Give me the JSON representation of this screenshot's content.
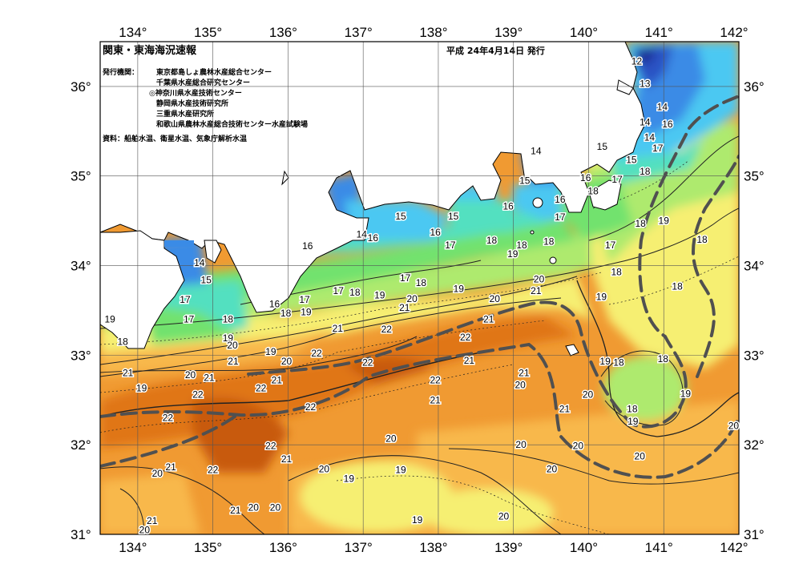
{
  "header": {
    "title": "関東・東海海況速報",
    "date": "平成 24年4月14日 発行",
    "issuer_label": "発行機関：",
    "issuers": [
      "東京都島しょ農林水産総合センター",
      "千葉県水産総合研究センター",
      "◎神奈川県水産技術センター",
      "静岡県水産技術研究所",
      "三重県水産研究所",
      "和歌山県農林水産総合技術センター水産試験場"
    ],
    "source": "資料：船舶水温、衛星水温、気象庁解析水温"
  },
  "axes": {
    "lon_ticks": [
      "134°",
      "135°",
      "136°",
      "137°",
      "138°",
      "139°",
      "140°",
      "141°",
      "142°"
    ],
    "lat_ticks": [
      "36°",
      "35°",
      "34°",
      "33°",
      "32°",
      "31°"
    ],
    "lon_range": [
      133.5,
      142.0
    ],
    "lat_range": [
      31.0,
      36.5
    ]
  },
  "isotherm_labels": [
    {
      "t": "12",
      "lon": 140.64,
      "lat": 36.28
    },
    {
      "t": "13",
      "lon": 140.75,
      "lat": 36.03
    },
    {
      "t": "14",
      "lon": 140.98,
      "lat": 35.77
    },
    {
      "t": "14",
      "lon": 140.75,
      "lat": 35.6
    },
    {
      "t": "16",
      "lon": 141.05,
      "lat": 35.58
    },
    {
      "t": "14",
      "lon": 140.81,
      "lat": 35.43
    },
    {
      "t": "17",
      "lon": 140.92,
      "lat": 35.31
    },
    {
      "t": "15",
      "lon": 140.18,
      "lat": 35.33
    },
    {
      "t": "15",
      "lon": 140.57,
      "lat": 35.18
    },
    {
      "t": "18",
      "lon": 140.75,
      "lat": 35.05
    },
    {
      "t": "14",
      "lon": 139.3,
      "lat": 35.28
    },
    {
      "t": "15",
      "lon": 139.15,
      "lat": 34.95
    },
    {
      "t": "16",
      "lon": 139.96,
      "lat": 34.98
    },
    {
      "t": "17",
      "lon": 140.38,
      "lat": 34.96
    },
    {
      "t": "18",
      "lon": 140.06,
      "lat": 34.83
    },
    {
      "t": "16",
      "lon": 139.62,
      "lat": 34.74
    },
    {
      "t": "16",
      "lon": 138.93,
      "lat": 34.66
    },
    {
      "t": "17",
      "lon": 139.62,
      "lat": 34.54
    },
    {
      "t": "18",
      "lon": 140.69,
      "lat": 34.47
    },
    {
      "t": "19",
      "lon": 141.0,
      "lat": 34.5
    },
    {
      "t": "18",
      "lon": 141.51,
      "lat": 34.29
    },
    {
      "t": "15",
      "lon": 137.5,
      "lat": 34.55
    },
    {
      "t": "15",
      "lon": 138.2,
      "lat": 34.55
    },
    {
      "t": "14",
      "lon": 136.98,
      "lat": 34.35
    },
    {
      "t": "16",
      "lon": 137.13,
      "lat": 34.31
    },
    {
      "t": "16",
      "lon": 137.96,
      "lat": 34.37
    },
    {
      "t": "17",
      "lon": 138.16,
      "lat": 34.23
    },
    {
      "t": "18",
      "lon": 138.71,
      "lat": 34.28
    },
    {
      "t": "18",
      "lon": 139.11,
      "lat": 34.23
    },
    {
      "t": "18",
      "lon": 139.47,
      "lat": 34.27
    },
    {
      "t": "19",
      "lon": 138.99,
      "lat": 34.13
    },
    {
      "t": "17",
      "lon": 140.29,
      "lat": 34.23
    },
    {
      "t": "16",
      "lon": 136.26,
      "lat": 34.22
    },
    {
      "t": "14",
      "lon": 134.82,
      "lat": 34.03
    },
    {
      "t": "15",
      "lon": 134.91,
      "lat": 33.84
    },
    {
      "t": "17",
      "lon": 137.56,
      "lat": 33.86
    },
    {
      "t": "18",
      "lon": 137.77,
      "lat": 33.81
    },
    {
      "t": "17",
      "lon": 136.67,
      "lat": 33.72
    },
    {
      "t": "18",
      "lon": 136.89,
      "lat": 33.7
    },
    {
      "t": "19",
      "lon": 137.22,
      "lat": 33.67
    },
    {
      "t": "19",
      "lon": 138.27,
      "lat": 33.74
    },
    {
      "t": "20",
      "lon": 139.34,
      "lat": 33.85
    },
    {
      "t": "21",
      "lon": 139.3,
      "lat": 33.72
    },
    {
      "t": "18",
      "lon": 140.37,
      "lat": 33.93
    },
    {
      "t": "19",
      "lon": 140.17,
      "lat": 33.65
    },
    {
      "t": "18",
      "lon": 141.18,
      "lat": 33.77
    },
    {
      "t": "17",
      "lon": 134.63,
      "lat": 33.62
    },
    {
      "t": "17",
      "lon": 134.68,
      "lat": 33.4
    },
    {
      "t": "17",
      "lon": 136.22,
      "lat": 33.62
    },
    {
      "t": "16",
      "lon": 135.82,
      "lat": 33.57
    },
    {
      "t": "18",
      "lon": 135.97,
      "lat": 33.47
    },
    {
      "t": "19",
      "lon": 136.24,
      "lat": 33.48
    },
    {
      "t": "20",
      "lon": 137.65,
      "lat": 33.63
    },
    {
      "t": "20",
      "lon": 138.75,
      "lat": 33.63
    },
    {
      "t": "21",
      "lon": 137.55,
      "lat": 33.53
    },
    {
      "t": "19",
      "lon": 133.63,
      "lat": 33.4
    },
    {
      "t": "18",
      "lon": 135.2,
      "lat": 33.4
    },
    {
      "t": "21",
      "lon": 136.66,
      "lat": 33.3
    },
    {
      "t": "22",
      "lon": 137.31,
      "lat": 33.29
    },
    {
      "t": "21",
      "lon": 138.67,
      "lat": 33.4
    },
    {
      "t": "22",
      "lon": 138.36,
      "lat": 33.2
    },
    {
      "t": "18",
      "lon": 133.8,
      "lat": 33.15
    },
    {
      "t": "19",
      "lon": 135.2,
      "lat": 33.19
    },
    {
      "t": "20",
      "lon": 135.26,
      "lat": 33.11
    },
    {
      "t": "22",
      "lon": 136.38,
      "lat": 33.02
    },
    {
      "t": "19",
      "lon": 135.77,
      "lat": 33.04
    },
    {
      "t": "21",
      "lon": 135.27,
      "lat": 32.93
    },
    {
      "t": "20",
      "lon": 135.98,
      "lat": 32.93
    },
    {
      "t": "22",
      "lon": 137.06,
      "lat": 32.92
    },
    {
      "t": "21",
      "lon": 138.41,
      "lat": 32.94
    },
    {
      "t": "19",
      "lon": 140.22,
      "lat": 32.93
    },
    {
      "t": "18",
      "lon": 140.4,
      "lat": 32.92
    },
    {
      "t": "18",
      "lon": 140.99,
      "lat": 32.96
    },
    {
      "t": "21",
      "lon": 133.87,
      "lat": 32.8
    },
    {
      "t": "20",
      "lon": 134.7,
      "lat": 32.78
    },
    {
      "t": "21",
      "lon": 134.95,
      "lat": 32.75
    },
    {
      "t": "21",
      "lon": 135.85,
      "lat": 32.72
    },
    {
      "t": "22",
      "lon": 137.96,
      "lat": 32.72
    },
    {
      "t": "21",
      "lon": 139.14,
      "lat": 32.8
    },
    {
      "t": "20",
      "lon": 139.09,
      "lat": 32.67
    },
    {
      "t": "19",
      "lon": 134.05,
      "lat": 32.63
    },
    {
      "t": "22",
      "lon": 134.8,
      "lat": 32.56
    },
    {
      "t": "22",
      "lon": 135.64,
      "lat": 32.63
    },
    {
      "t": "21",
      "lon": 137.96,
      "lat": 32.5
    },
    {
      "t": "20",
      "lon": 139.99,
      "lat": 32.56
    },
    {
      "t": "19",
      "lon": 141.29,
      "lat": 32.57
    },
    {
      "t": "22",
      "lon": 136.3,
      "lat": 32.42
    },
    {
      "t": "21",
      "lon": 139.68,
      "lat": 32.4
    },
    {
      "t": "18",
      "lon": 140.58,
      "lat": 32.4
    },
    {
      "t": "22",
      "lon": 134.4,
      "lat": 32.3
    },
    {
      "t": "19",
      "lon": 140.59,
      "lat": 32.26
    },
    {
      "t": "20",
      "lon": 141.93,
      "lat": 32.21
    },
    {
      "t": "22",
      "lon": 135.77,
      "lat": 31.99
    },
    {
      "t": "20",
      "lon": 137.37,
      "lat": 32.07
    },
    {
      "t": "20",
      "lon": 139.1,
      "lat": 32.0
    },
    {
      "t": "20",
      "lon": 139.86,
      "lat": 31.99
    },
    {
      "t": "21",
      "lon": 135.98,
      "lat": 31.84
    },
    {
      "t": "20",
      "lon": 140.68,
      "lat": 31.87
    },
    {
      "t": "21",
      "lon": 134.44,
      "lat": 31.75
    },
    {
      "t": "20",
      "lon": 134.26,
      "lat": 31.68
    },
    {
      "t": "22",
      "lon": 135.0,
      "lat": 31.72
    },
    {
      "t": "20",
      "lon": 136.48,
      "lat": 31.73
    },
    {
      "t": "19",
      "lon": 136.81,
      "lat": 31.62
    },
    {
      "t": "19",
      "lon": 137.5,
      "lat": 31.72
    },
    {
      "t": "20",
      "lon": 139.51,
      "lat": 31.73
    },
    {
      "t": "20",
      "lon": 135.54,
      "lat": 31.3
    },
    {
      "t": "20",
      "lon": 135.83,
      "lat": 31.3
    },
    {
      "t": "21",
      "lon": 135.3,
      "lat": 31.27
    },
    {
      "t": "20",
      "lon": 138.87,
      "lat": 31.2
    },
    {
      "t": "21",
      "lon": 134.19,
      "lat": 31.15
    },
    {
      "t": "20",
      "lon": 134.09,
      "lat": 31.05
    },
    {
      "t": "19",
      "lon": 137.72,
      "lat": 31.16
    }
  ],
  "colors": {
    "t12": "#1e2f96",
    "t13": "#2a52c4",
    "t14": "#3a8be6",
    "t15": "#4cc8f2",
    "t16": "#53e0c0",
    "t17": "#72e26e",
    "t18": "#aeea6e",
    "t19": "#f6ef72",
    "t20": "#f8b84c",
    "t21": "#f09a32",
    "t22": "#e07616",
    "t23": "#c85a0e",
    "land": "#ffffff",
    "coast": "#000000",
    "kuroshio": "#505050"
  }
}
